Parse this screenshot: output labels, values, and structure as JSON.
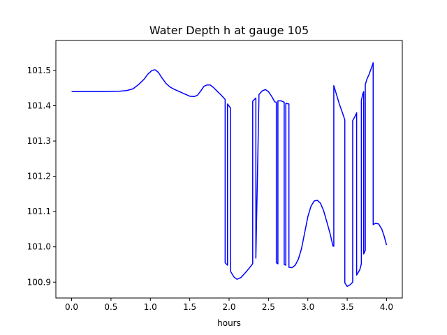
{
  "chart_data": {
    "type": "line",
    "title": "Water Depth h at gauge 105",
    "xlabel": "hours",
    "ylabel": "",
    "xlim": [
      -0.2,
      4.2
    ],
    "ylim": [
      100.855,
      101.585
    ],
    "grid": false,
    "legend": "none",
    "x_ticks": [
      {
        "value": 0.0,
        "label": "0.0"
      },
      {
        "value": 0.5,
        "label": "0.5"
      },
      {
        "value": 1.0,
        "label": "1.0"
      },
      {
        "value": 1.5,
        "label": "1.5"
      },
      {
        "value": 2.0,
        "label": "2.0"
      },
      {
        "value": 2.5,
        "label": "2.5"
      },
      {
        "value": 3.0,
        "label": "3.0"
      },
      {
        "value": 3.5,
        "label": "3.5"
      },
      {
        "value": 4.0,
        "label": "4.0"
      }
    ],
    "y_ticks": [
      {
        "value": 100.9,
        "label": "100.9"
      },
      {
        "value": 101.0,
        "label": "101.0"
      },
      {
        "value": 101.1,
        "label": "101.1"
      },
      {
        "value": 101.2,
        "label": "101.2"
      },
      {
        "value": 101.3,
        "label": "101.3"
      },
      {
        "value": 101.4,
        "label": "101.4"
      },
      {
        "value": 101.5,
        "label": "101.5"
      }
    ],
    "series": [
      {
        "color": "#0000ff",
        "x": [
          0.0,
          0.4,
          0.6,
          0.7,
          0.78,
          0.85,
          0.92,
          0.97,
          1.02,
          1.06,
          1.1,
          1.15,
          1.2,
          1.25,
          1.3,
          1.4,
          1.5,
          1.56,
          1.6,
          1.64,
          1.68,
          1.72,
          1.76,
          1.8,
          1.85,
          1.9,
          1.95,
          1.95,
          1.98,
          1.98,
          2.02,
          2.02,
          2.06,
          2.1,
          2.15,
          2.2,
          2.25,
          2.3,
          2.3,
          2.34,
          2.34,
          2.38,
          2.42,
          2.46,
          2.5,
          2.54,
          2.58,
          2.6,
          2.6,
          2.62,
          2.62,
          2.66,
          2.7,
          2.7,
          2.72,
          2.72,
          2.76,
          2.76,
          2.8,
          2.84,
          2.88,
          2.92,
          2.96,
          3.0,
          3.04,
          3.08,
          3.12,
          3.16,
          3.2,
          3.24,
          3.28,
          3.32,
          3.33,
          3.33,
          3.36,
          3.4,
          3.44,
          3.47,
          3.47,
          3.5,
          3.54,
          3.57,
          3.57,
          3.6,
          3.62,
          3.62,
          3.66,
          3.68,
          3.68,
          3.7,
          3.71,
          3.71,
          3.73,
          3.73,
          3.75,
          3.78,
          3.82,
          3.83,
          3.83,
          3.86,
          3.9,
          3.94,
          3.97,
          4.0
        ],
        "y": [
          101.44,
          101.44,
          101.441,
          101.443,
          101.448,
          101.46,
          101.475,
          101.49,
          101.5,
          101.502,
          101.495,
          101.478,
          101.463,
          101.453,
          101.447,
          101.437,
          101.427,
          101.426,
          101.43,
          101.442,
          101.455,
          101.459,
          101.459,
          101.452,
          101.441,
          101.43,
          101.418,
          100.955,
          100.948,
          101.405,
          101.393,
          100.93,
          100.915,
          100.908,
          100.913,
          100.925,
          100.938,
          100.952,
          101.413,
          101.422,
          100.968,
          101.432,
          101.442,
          101.446,
          101.44,
          101.427,
          101.411,
          101.41,
          100.955,
          100.952,
          101.414,
          101.414,
          101.41,
          100.95,
          100.948,
          101.407,
          101.405,
          100.942,
          100.941,
          100.948,
          100.965,
          100.995,
          101.04,
          101.085,
          101.115,
          101.13,
          101.132,
          101.124,
          101.103,
          101.072,
          101.04,
          101.002,
          101.002,
          101.457,
          101.435,
          101.405,
          101.38,
          101.36,
          100.898,
          100.888,
          100.893,
          100.9,
          101.358,
          101.37,
          101.38,
          100.92,
          100.935,
          100.952,
          101.415,
          101.435,
          101.44,
          100.98,
          100.99,
          101.46,
          101.475,
          101.49,
          101.515,
          101.522,
          101.063,
          101.067,
          101.065,
          101.05,
          101.03,
          101.005
        ]
      }
    ]
  }
}
